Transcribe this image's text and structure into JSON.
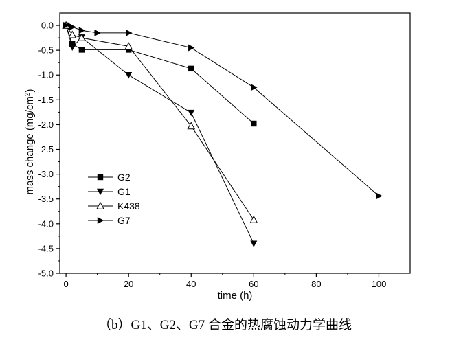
{
  "caption": "（b）G1、G2、G7 合金的热腐蚀动力学曲线",
  "chart_data": {
    "type": "line",
    "xlabel": "time (h)",
    "ylabel_main": "mass change (mg/cm",
    "ylabel_sup": "2",
    "ylabel_tail": ")",
    "xlim": [
      -2,
      110
    ],
    "ylim": [
      -5.0,
      0.25
    ],
    "x_ticks": [
      0,
      20,
      40,
      60,
      80,
      100
    ],
    "y_ticks": [
      0.0,
      -0.5,
      -1.0,
      -1.5,
      -2.0,
      -2.5,
      -3.0,
      -3.5,
      -4.0,
      -4.5,
      -5.0
    ],
    "y_tick_labels": [
      "0.0",
      "-0.5",
      "-1.0",
      "-1.5",
      "-2.0",
      "-2.5",
      "-3.0",
      "-3.5",
      "-4.0",
      "-4.5",
      "-5.0"
    ],
    "legend_position": "bottom-left",
    "series": [
      {
        "name": "G2",
        "marker": "square",
        "points": [
          [
            0,
            0.0
          ],
          [
            2,
            -0.37
          ],
          [
            5,
            -0.49
          ],
          [
            20,
            -0.49
          ],
          [
            40,
            -0.87
          ],
          [
            60,
            -1.98
          ]
        ]
      },
      {
        "name": "G1",
        "marker": "triangle-down",
        "points": [
          [
            0,
            0.0
          ],
          [
            2,
            -0.44
          ],
          [
            5,
            -0.24
          ],
          [
            20,
            -1.0
          ],
          [
            40,
            -1.76
          ],
          [
            60,
            -4.4
          ]
        ]
      },
      {
        "name": "K438",
        "marker": "triangle-up-open",
        "points": [
          [
            0,
            0.0
          ],
          [
            2,
            -0.19
          ],
          [
            5,
            -0.25
          ],
          [
            20,
            -0.42
          ],
          [
            40,
            -2.03
          ],
          [
            60,
            -3.92
          ]
        ]
      },
      {
        "name": "G7",
        "marker": "triangle-right",
        "points": [
          [
            0,
            0.0
          ],
          [
            2,
            -0.03
          ],
          [
            5,
            -0.1
          ],
          [
            10,
            -0.15
          ],
          [
            20,
            -0.15
          ],
          [
            40,
            -0.45
          ],
          [
            60,
            -1.25
          ],
          [
            100,
            -3.44
          ]
        ]
      }
    ]
  }
}
